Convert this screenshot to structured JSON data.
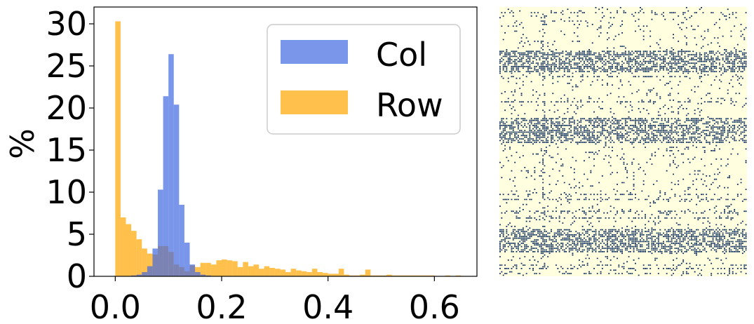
{
  "colors": {
    "col": "#4169e1",
    "row": "#ffa500",
    "heatmap_background": "#ffffe0",
    "heatmap_dots": "#0b2a5e",
    "axis": "#000000"
  },
  "chart_data": [
    {
      "type": "bar",
      "subtype": "histogram",
      "xlabel": "",
      "ylabel": "%",
      "xlim": [
        -0.04,
        0.68
      ],
      "ylim": [
        0,
        32
      ],
      "xticks": [
        0.0,
        0.2,
        0.4,
        0.6
      ],
      "xtick_labels": [
        "0.0",
        "0.2",
        "0.4",
        "0.6"
      ],
      "yticks": [
        0,
        5,
        10,
        15,
        20,
        25,
        30
      ],
      "ytick_labels": [
        "0",
        "5",
        "10",
        "15",
        "20",
        "25",
        "30"
      ],
      "grid": false,
      "legend": {
        "position": "top-right"
      },
      "bin_width": 0.01,
      "series": [
        {
          "name": "Row",
          "color": "#ffa500",
          "opacity": 0.7,
          "bins": [
            [
              0.0,
              30.3
            ],
            [
              0.01,
              7.0
            ],
            [
              0.02,
              6.2
            ],
            [
              0.03,
              5.4
            ],
            [
              0.04,
              4.4
            ],
            [
              0.05,
              3.3
            ],
            [
              0.06,
              2.7
            ],
            [
              0.07,
              2.6
            ],
            [
              0.08,
              3.6
            ],
            [
              0.09,
              3.6
            ],
            [
              0.1,
              2.9
            ],
            [
              0.11,
              1.4
            ],
            [
              0.12,
              1.1
            ],
            [
              0.13,
              0.6
            ],
            [
              0.14,
              1.3
            ],
            [
              0.15,
              1.1
            ],
            [
              0.16,
              1.6
            ],
            [
              0.17,
              1.6
            ],
            [
              0.18,
              1.4
            ],
            [
              0.19,
              1.9
            ],
            [
              0.2,
              2.0
            ],
            [
              0.21,
              1.9
            ],
            [
              0.22,
              1.8
            ],
            [
              0.23,
              1.1
            ],
            [
              0.24,
              1.7
            ],
            [
              0.25,
              1.2
            ],
            [
              0.26,
              1.4
            ],
            [
              0.27,
              0.9
            ],
            [
              0.28,
              1.2
            ],
            [
              0.29,
              1.0
            ],
            [
              0.3,
              0.9
            ],
            [
              0.31,
              0.8
            ],
            [
              0.32,
              0.5
            ],
            [
              0.33,
              0.9
            ],
            [
              0.34,
              0.7
            ],
            [
              0.35,
              0.6
            ],
            [
              0.36,
              0.5
            ],
            [
              0.37,
              0.9
            ],
            [
              0.38,
              0.5
            ],
            [
              0.39,
              0.4
            ],
            [
              0.4,
              0.3
            ],
            [
              0.41,
              0.3
            ],
            [
              0.42,
              0.9
            ],
            [
              0.43,
              0.2
            ],
            [
              0.44,
              0.1
            ],
            [
              0.45,
              0.1
            ],
            [
              0.46,
              0.2
            ],
            [
              0.47,
              0.8
            ],
            [
              0.48,
              0.1
            ],
            [
              0.49,
              0.1
            ],
            [
              0.5,
              0.1
            ],
            [
              0.51,
              0.2
            ],
            [
              0.52,
              0.1
            ],
            [
              0.53,
              0.1
            ],
            [
              0.54,
              0.1
            ],
            [
              0.55,
              0.1
            ],
            [
              0.56,
              0.1
            ],
            [
              0.57,
              0.1
            ],
            [
              0.58,
              0.1
            ],
            [
              0.59,
              0.1
            ],
            [
              0.6,
              0.0
            ],
            [
              0.61,
              0.0
            ],
            [
              0.62,
              0.1
            ],
            [
              0.63,
              0.0
            ],
            [
              0.64,
              0.1
            ]
          ]
        },
        {
          "name": "Col",
          "color": "#4169e1",
          "opacity": 0.7,
          "bins": [
            [
              0.03,
              0.1
            ],
            [
              0.04,
              0.2
            ],
            [
              0.05,
              0.5
            ],
            [
              0.06,
              1.2
            ],
            [
              0.07,
              3.3
            ],
            [
              0.08,
              10.3
            ],
            [
              0.09,
              21.4
            ],
            [
              0.1,
              26.4
            ],
            [
              0.11,
              20.4
            ],
            [
              0.12,
              8.5
            ],
            [
              0.13,
              4.0
            ],
            [
              0.14,
              1.4
            ],
            [
              0.15,
              0.5
            ],
            [
              0.16,
              0.2
            ],
            [
              0.17,
              0.1
            ]
          ]
        }
      ]
    },
    {
      "type": "heatmap",
      "xlabel": "",
      "ylabel": "",
      "axes_visible": false
    }
  ]
}
